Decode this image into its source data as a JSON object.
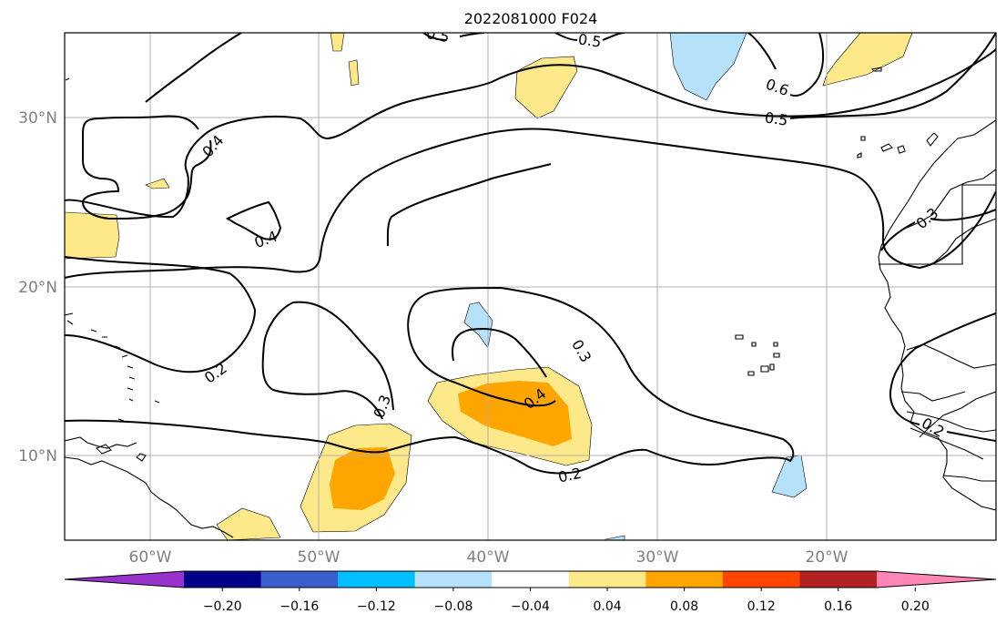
{
  "title": "2022081000 F024",
  "colors": {
    "land_line": "#000000",
    "grid": "#b0b0b0",
    "pos_light": "#fde98a",
    "pos_med": "#ffa500",
    "neg_light": "#b5e2fa"
  },
  "map": {
    "lon_ticks": [
      {
        "label": "60°W"
      },
      {
        "label": "50°W"
      },
      {
        "label": "40°W"
      },
      {
        "label": "30°W"
      },
      {
        "label": "20°W"
      }
    ],
    "lat_ticks": [
      {
        "label": "30°N"
      },
      {
        "label": "20°N"
      },
      {
        "label": "10°N"
      }
    ],
    "contour_labels": [
      "0.5",
      "0.5",
      "0.6",
      "0.5",
      "0.4",
      "0.4",
      "0.3",
      "0.2",
      "0.3",
      "0.3",
      "0.4",
      "0.2",
      "0.2"
    ]
  },
  "colorbar": {
    "colors": [
      "#9932cc",
      "#00008b",
      "#3a5fcd",
      "#00bfff",
      "#b5e2fa",
      "#ffffff",
      "#fde98a",
      "#ffa500",
      "#ff4500",
      "#b22222",
      "#ff85b4"
    ],
    "tick_labels": [
      "−0.20",
      "−0.16",
      "−0.12",
      "−0.08",
      "−0.04",
      "0.04",
      "0.08",
      "0.12",
      "0.16",
      "0.20"
    ]
  }
}
